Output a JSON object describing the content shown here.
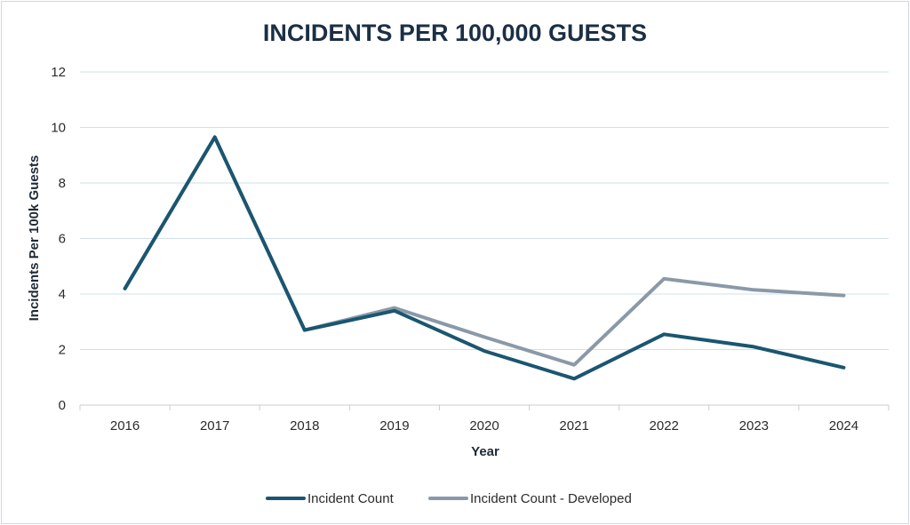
{
  "chart_data": {
    "type": "line",
    "title": "INCIDENTS PER 100,000 GUESTS",
    "xlabel": "Year",
    "ylabel": "Incidents Per 100k Guests",
    "categories": [
      "2016",
      "2017",
      "2018",
      "2019",
      "2020",
      "2021",
      "2022",
      "2023",
      "2024"
    ],
    "ylim": [
      0,
      12
    ],
    "yticks": [
      "0",
      "2",
      "4",
      "6",
      "8",
      "10",
      "12"
    ],
    "grid": true,
    "legend_position": "bottom",
    "series": [
      {
        "name": "Incident Count",
        "color": "#1a5670",
        "values": [
          4.2,
          9.65,
          2.7,
          3.4,
          1.95,
          0.95,
          2.55,
          2.1,
          1.35
        ]
      },
      {
        "name": "Incident Count - Developed",
        "color": "#8a99a8",
        "values": [
          4.2,
          9.65,
          2.7,
          3.5,
          2.45,
          1.45,
          4.55,
          4.15,
          3.95
        ]
      }
    ]
  }
}
